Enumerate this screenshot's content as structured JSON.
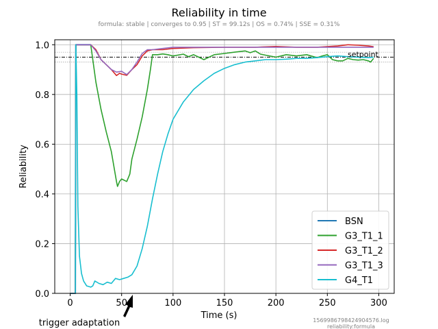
{
  "chart_data": {
    "type": "line",
    "title": "Reliability in time",
    "subtitle": "formula: stable | converges to 0.95 | ST = 99.12s | OS = 0.74% | SSE = 0.31%",
    "xlabel": "Time (s)",
    "ylabel": "Reliability",
    "xlim": [
      -15,
      315
    ],
    "ylim": [
      0.0,
      1.02
    ],
    "xticks": [
      0,
      50,
      100,
      150,
      200,
      250,
      300
    ],
    "yticks": [
      0.0,
      0.2,
      0.4,
      0.6,
      0.8,
      1.0
    ],
    "grid": true,
    "legend_position": "lower right",
    "setpoint": {
      "value": 0.95,
      "label": "setpoint",
      "band": [
        0.93,
        0.97
      ]
    },
    "annotation": {
      "text": "trigger adaptation",
      "x": 58
    },
    "file_note": [
      "1569986798424904576.log",
      "reliability:formula"
    ],
    "series": [
      {
        "name": "BSN",
        "color": "#1f77b4",
        "points": [
          [
            0,
            0
          ],
          [
            5,
            0
          ],
          [
            5.5,
            1.0
          ],
          [
            20,
            1.0
          ]
        ]
      },
      {
        "name": "G3_T1_1",
        "color": "#2ca02c",
        "points": [
          [
            0,
            0
          ],
          [
            5,
            0
          ],
          [
            5.5,
            1.0
          ],
          [
            20,
            1.0
          ],
          [
            25,
            0.85
          ],
          [
            30,
            0.74
          ],
          [
            35,
            0.65
          ],
          [
            40,
            0.57
          ],
          [
            45,
            0.45
          ],
          [
            46,
            0.43
          ],
          [
            48,
            0.45
          ],
          [
            50,
            0.46
          ],
          [
            55,
            0.45
          ],
          [
            58,
            0.48
          ],
          [
            60,
            0.54
          ],
          [
            65,
            0.62
          ],
          [
            70,
            0.71
          ],
          [
            75,
            0.82
          ],
          [
            78,
            0.9
          ],
          [
            80,
            0.96
          ],
          [
            85,
            0.96
          ],
          [
            90,
            0.963
          ],
          [
            95,
            0.96
          ],
          [
            100,
            0.955
          ],
          [
            110,
            0.962
          ],
          [
            115,
            0.952
          ],
          [
            120,
            0.96
          ],
          [
            125,
            0.95
          ],
          [
            130,
            0.94
          ],
          [
            140,
            0.96
          ],
          [
            150,
            0.965
          ],
          [
            160,
            0.97
          ],
          [
            170,
            0.975
          ],
          [
            175,
            0.968
          ],
          [
            180,
            0.975
          ],
          [
            185,
            0.962
          ],
          [
            190,
            0.958
          ],
          [
            200,
            0.95
          ],
          [
            210,
            0.96
          ],
          [
            220,
            0.955
          ],
          [
            230,
            0.96
          ],
          [
            240,
            0.948
          ],
          [
            245,
            0.955
          ],
          [
            250,
            0.96
          ],
          [
            255,
            0.94
          ],
          [
            260,
            0.935
          ],
          [
            265,
            0.935
          ],
          [
            270,
            0.945
          ],
          [
            275,
            0.94
          ],
          [
            280,
            0.938
          ],
          [
            285,
            0.94
          ],
          [
            290,
            0.935
          ],
          [
            292,
            0.93
          ],
          [
            295,
            0.945
          ]
        ]
      },
      {
        "name": "G3_T1_2",
        "color": "#d62728",
        "points": [
          [
            0,
            0
          ],
          [
            5,
            0
          ],
          [
            5.5,
            1.0
          ],
          [
            20,
            1.0
          ],
          [
            25,
            0.98
          ],
          [
            30,
            0.94
          ],
          [
            35,
            0.92
          ],
          [
            40,
            0.9
          ],
          [
            45,
            0.876
          ],
          [
            48,
            0.885
          ],
          [
            50,
            0.882
          ],
          [
            55,
            0.877
          ],
          [
            60,
            0.9
          ],
          [
            65,
            0.92
          ],
          [
            70,
            0.955
          ],
          [
            75,
            0.975
          ],
          [
            80,
            0.98
          ],
          [
            90,
            0.98
          ],
          [
            100,
            0.985
          ],
          [
            120,
            0.988
          ],
          [
            150,
            0.99
          ],
          [
            180,
            0.99
          ],
          [
            200,
            0.993
          ],
          [
            220,
            0.99
          ],
          [
            240,
            0.99
          ],
          [
            260,
            0.995
          ],
          [
            270,
            1.0
          ],
          [
            280,
            0.998
          ],
          [
            290,
            0.995
          ],
          [
            295,
            0.992
          ]
        ]
      },
      {
        "name": "G3_T1_3",
        "color": "#9467bd",
        "points": [
          [
            0,
            0
          ],
          [
            5,
            0
          ],
          [
            5.5,
            1.0
          ],
          [
            20,
            1.0
          ],
          [
            25,
            0.975
          ],
          [
            30,
            0.94
          ],
          [
            35,
            0.92
          ],
          [
            40,
            0.9
          ],
          [
            45,
            0.89
          ],
          [
            50,
            0.893
          ],
          [
            55,
            0.88
          ],
          [
            60,
            0.9
          ],
          [
            65,
            0.93
          ],
          [
            70,
            0.965
          ],
          [
            75,
            0.98
          ],
          [
            80,
            0.98
          ],
          [
            90,
            0.985
          ],
          [
            100,
            0.99
          ],
          [
            150,
            0.99
          ],
          [
            200,
            0.99
          ],
          [
            250,
            0.99
          ],
          [
            295,
            0.99
          ]
        ]
      },
      {
        "name": "G4_T1",
        "color": "#17becf",
        "points": [
          [
            0,
            0
          ],
          [
            5,
            0
          ],
          [
            5.5,
            1.0
          ],
          [
            6.5,
            0.8
          ],
          [
            7.5,
            0.35
          ],
          [
            9,
            0.15
          ],
          [
            11,
            0.08
          ],
          [
            13,
            0.05
          ],
          [
            16,
            0.03
          ],
          [
            20,
            0.025
          ],
          [
            22,
            0.03
          ],
          [
            24,
            0.05
          ],
          [
            28,
            0.04
          ],
          [
            32,
            0.035
          ],
          [
            36,
            0.045
          ],
          [
            40,
            0.04
          ],
          [
            44,
            0.06
          ],
          [
            48,
            0.055
          ],
          [
            52,
            0.06
          ],
          [
            56,
            0.065
          ],
          [
            60,
            0.075
          ],
          [
            65,
            0.11
          ],
          [
            70,
            0.18
          ],
          [
            75,
            0.27
          ],
          [
            80,
            0.38
          ],
          [
            85,
            0.48
          ],
          [
            90,
            0.57
          ],
          [
            95,
            0.64
          ],
          [
            100,
            0.7
          ],
          [
            110,
            0.77
          ],
          [
            120,
            0.82
          ],
          [
            130,
            0.855
          ],
          [
            140,
            0.885
          ],
          [
            150,
            0.905
          ],
          [
            160,
            0.92
          ],
          [
            170,
            0.93
          ],
          [
            180,
            0.935
          ],
          [
            190,
            0.94
          ],
          [
            200,
            0.94
          ],
          [
            210,
            0.942
          ],
          [
            220,
            0.945
          ],
          [
            230,
            0.945
          ],
          [
            240,
            0.948
          ],
          [
            250,
            0.952
          ],
          [
            260,
            0.955
          ],
          [
            270,
            0.952
          ],
          [
            280,
            0.95
          ],
          [
            290,
            0.948
          ],
          [
            295,
            0.95
          ]
        ]
      }
    ]
  }
}
